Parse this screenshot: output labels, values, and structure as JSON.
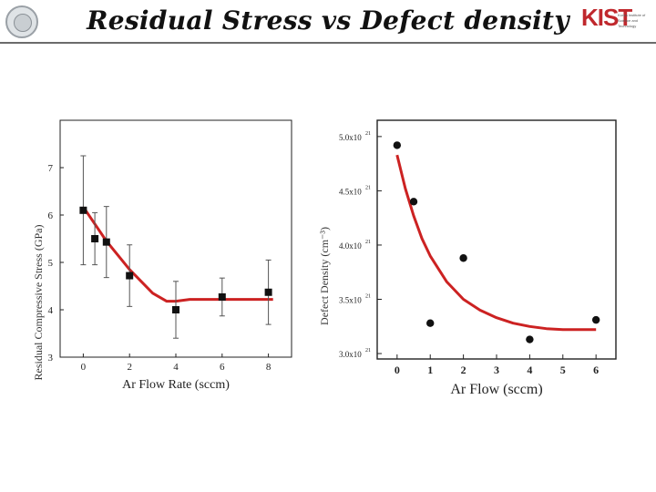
{
  "slide": {
    "title": "Residual Stress vs Defect density"
  },
  "logo": {
    "mark": "KIST",
    "caption_line1": "Korea Institute of",
    "caption_line2": "Science and Technology"
  },
  "colors": {
    "fit_line": "#cc2222",
    "marker": "#111111",
    "axis": "#222222"
  },
  "chart_data": [
    {
      "type": "scatter",
      "xlabel": "Ar Flow Rate (sccm)",
      "ylabel": "Residual Compressive Stress (GPa)",
      "xlim": [
        -1,
        9
      ],
      "ylim": [
        3,
        8
      ],
      "xticks": [
        0,
        2,
        4,
        6,
        8
      ],
      "yticks": [
        3,
        4,
        5,
        6,
        7
      ],
      "marker": "square",
      "points": [
        {
          "x": 0,
          "y": 6.1,
          "err": 1.15
        },
        {
          "x": 0.5,
          "y": 5.5,
          "err": 0.55
        },
        {
          "x": 1,
          "y": 5.43,
          "err": 0.75
        },
        {
          "x": 2,
          "y": 4.72,
          "err": 0.65
        },
        {
          "x": 4,
          "y": 4.0,
          "err": 0.6
        },
        {
          "x": 6,
          "y": 4.27,
          "err": 0.4
        },
        {
          "x": 8,
          "y": 4.37,
          "err": 0.68
        }
      ],
      "fit": {
        "x": [
          0.1,
          1,
          2,
          3,
          3.6,
          4,
          4.6,
          5,
          6,
          7,
          8.2
        ],
        "y": [
          6.1,
          5.45,
          4.85,
          4.35,
          4.18,
          4.18,
          4.22,
          4.22,
          4.22,
          4.22,
          4.22
        ]
      }
    },
    {
      "type": "scatter",
      "xlabel": "Ar Flow (sccm)",
      "ylabel": "Defect Density (cm⁻³)",
      "xlim": [
        -0.6,
        6.6
      ],
      "ylim": [
        2.95e+21,
        5.15e+21
      ],
      "xticks": [
        0,
        1,
        2,
        3,
        4,
        5,
        6
      ],
      "yticks": [
        {
          "value": 3e+21,
          "label": "3.0x10",
          "exp": "21"
        },
        {
          "value": 3.5e+21,
          "label": "3.5x10",
          "exp": "21"
        },
        {
          "value": 4e+21,
          "label": "4.0x10",
          "exp": "21"
        },
        {
          "value": 4.5e+21,
          "label": "4.5x10",
          "exp": "21"
        },
        {
          "value": 5e+21,
          "label": "5.0x10",
          "exp": "21"
        }
      ],
      "marker": "circle",
      "points": [
        {
          "x": 0,
          "y": 4.92e+21
        },
        {
          "x": 0.5,
          "y": 4.4e+21
        },
        {
          "x": 1,
          "y": 3.28e+21
        },
        {
          "x": 2,
          "y": 3.88e+21
        },
        {
          "x": 4,
          "y": 3.13e+21
        },
        {
          "x": 6,
          "y": 3.31e+21
        }
      ],
      "fit": {
        "x": [
          0,
          0.25,
          0.5,
          0.75,
          1,
          1.5,
          2,
          2.5,
          3,
          3.5,
          4,
          4.5,
          5,
          5.5,
          6
        ],
        "y": [
          4.83e+21,
          4.52e+21,
          4.27e+21,
          4.06e+21,
          3.9e+21,
          3.66e+21,
          3.5e+21,
          3.4e+21,
          3.33e+21,
          3.28e+21,
          3.25e+21,
          3.23e+21,
          3.22e+21,
          3.22e+21,
          3.22e+21
        ]
      }
    }
  ]
}
